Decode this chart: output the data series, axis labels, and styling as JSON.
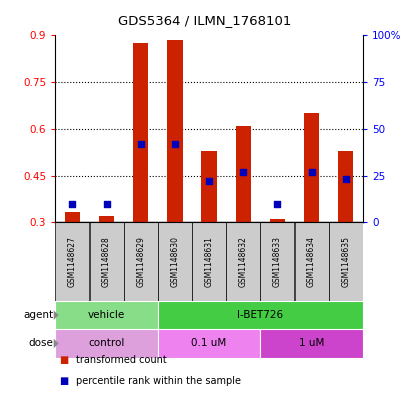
{
  "title": "GDS5364 / ILMN_1768101",
  "samples": [
    "GSM1148627",
    "GSM1148628",
    "GSM1148629",
    "GSM1148630",
    "GSM1148631",
    "GSM1148632",
    "GSM1148633",
    "GSM1148634",
    "GSM1148635"
  ],
  "transformed_count": [
    0.335,
    0.32,
    0.875,
    0.885,
    0.53,
    0.61,
    0.31,
    0.65,
    0.53
  ],
  "transformed_count_bottom": [
    0.3,
    0.3,
    0.3,
    0.3,
    0.3,
    0.3,
    0.3,
    0.3,
    0.3
  ],
  "percentile_rank_pct": [
    10,
    10,
    42,
    42,
    22,
    27,
    10,
    27,
    23
  ],
  "ylim_left": [
    0.3,
    0.9
  ],
  "ylim_right": [
    0,
    100
  ],
  "yticks_left": [
    0.3,
    0.45,
    0.6,
    0.75,
    0.9
  ],
  "yticks_right": [
    0,
    25,
    50,
    75,
    100
  ],
  "ytick_labels_left": [
    "0.3",
    "0.45",
    "0.6",
    "0.75",
    "0.9"
  ],
  "ytick_labels_right": [
    "0",
    "25",
    "50",
    "75",
    "100%"
  ],
  "agent_groups": [
    {
      "label": "vehicle",
      "start": 0,
      "end": 3,
      "color": "#88DD88"
    },
    {
      "label": "I-BET726",
      "start": 3,
      "end": 9,
      "color": "#44CC44"
    }
  ],
  "dose_groups": [
    {
      "label": "control",
      "start": 0,
      "end": 3,
      "color": "#DDA0DD"
    },
    {
      "label": "0.1 uM",
      "start": 3,
      "end": 6,
      "color": "#EE82EE"
    },
    {
      "label": "1 uM",
      "start": 6,
      "end": 9,
      "color": "#CC44CC"
    }
  ],
  "bar_color": "#CC2200",
  "dot_color": "#0000BB",
  "bar_width": 0.45,
  "sample_box_color": "#CCCCCC",
  "legend_items": [
    "transformed count",
    "percentile rank within the sample"
  ],
  "legend_colors": [
    "#CC2200",
    "#0000BB"
  ]
}
